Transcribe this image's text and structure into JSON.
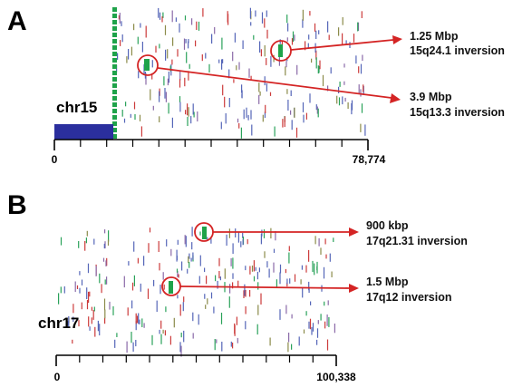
{
  "colors": {
    "red": "#cc3b3b",
    "blue": "#5566b8",
    "green": "#2aa25a",
    "purple": "#8a6aa8",
    "olive": "#8b8b4a",
    "navy_bar": "#2b2f9e",
    "annotation": "#d42424",
    "inversion": "#1fa34a"
  },
  "panels": [
    {
      "letter": "A",
      "chromosome": "chr15",
      "axis_start": "0",
      "axis_end": "78,774",
      "annotations": [
        {
          "size": "1.25 Mbp",
          "label": "15q24.1 inversion"
        },
        {
          "size": "3.9 Mbp",
          "label": "15q13.3 inversion"
        }
      ]
    },
    {
      "letter": "B",
      "chromosome": "chr17",
      "axis_start": "0",
      "axis_end": "100,338",
      "annotations": [
        {
          "size": "900 kbp",
          "label": "17q21.31 inversion"
        },
        {
          "size": "1.5 Mbp",
          "label": "17q12 inversion"
        }
      ]
    }
  ]
}
